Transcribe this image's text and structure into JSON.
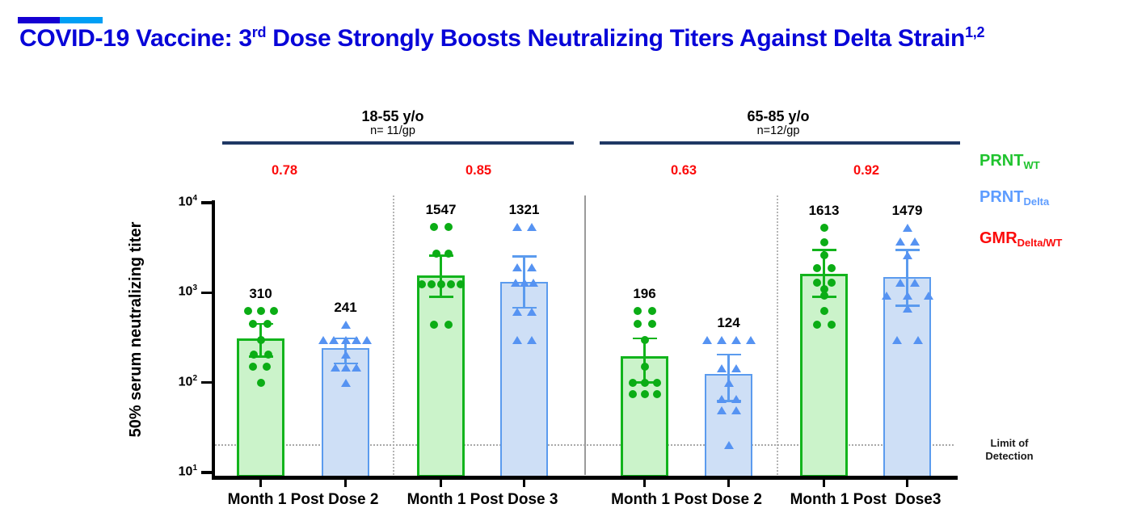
{
  "slide_title": {
    "part1": "COVID-19 Vaccine: 3",
    "sup1": "rd",
    "part2": " Dose Strongly Boosts Neutralizing Titers Against Delta Strain",
    "sup2": "1,2",
    "color": "#0805D8"
  },
  "accent": {
    "dark_bar_color": "#1500D2",
    "light_bar_color": "#009FF5"
  },
  "legend": {
    "items": [
      {
        "main": "PRNT",
        "sub": "WT",
        "color": "#1FC32E"
      },
      {
        "main": "PRNT",
        "sub": "Delta",
        "color": "#5D9CFF"
      },
      {
        "main": "GMR",
        "sub": "Delta/WT",
        "color": "#FB0A0A"
      }
    ]
  },
  "chart_data": {
    "type": "bar",
    "yscale": "log",
    "ylabel": "50% serum neutralizing titer",
    "ylim": [
      10,
      10000
    ],
    "ytick_exponents": [
      1,
      2,
      3,
      4
    ],
    "grid": false,
    "limit_of_detection": {
      "value": 20,
      "label_line1": "Limit of",
      "label_line2": "Detection"
    },
    "colors": {
      "wt_fill": "#CBF3CA",
      "wt_stroke": "#12B41C",
      "wt_point": "#0BAD15",
      "delta_fill": "#CEDFF6",
      "delta_stroke": "#5B9BEE",
      "delta_point": "#5693F2",
      "gmr_text": "#FB0A0A",
      "header_line": "#1F3864",
      "axis": "#000000",
      "separator_solid": "#9B9B9B",
      "separator_dotted": "#B5B5B5",
      "lod_line": "#A8A8A8"
    },
    "age_groups": [
      {
        "label": "18-55 y/o",
        "n_label": "n= 11/gp"
      },
      {
        "label": "65-85 y/o",
        "n_label": "n=12/gp"
      }
    ],
    "dose_groups": [
      {
        "age_group": 0,
        "label": "Month 1 Post Dose 2",
        "gmr": "0.78"
      },
      {
        "age_group": 0,
        "label": "Month 1 Post Dose 3",
        "gmr": "0.85"
      },
      {
        "age_group": 1,
        "label": "Month 1 Post Dose 2",
        "gmr": "0.63"
      },
      {
        "age_group": 1,
        "label": "Month 1 Post  Dose3",
        "gmr": "0.92"
      }
    ],
    "bars": [
      {
        "dose_group": 0,
        "series": "PRNT_WT",
        "value": 310,
        "err_lo": 195,
        "err_hi": 450,
        "points": [
          [
            630,
            -16
          ],
          [
            630,
            0
          ],
          [
            630,
            16
          ],
          [
            450,
            -10
          ],
          [
            450,
            8
          ],
          [
            295,
            0
          ],
          [
            205,
            -9
          ],
          [
            205,
            9
          ],
          [
            150,
            -10
          ],
          [
            150,
            7
          ],
          [
            100,
            0
          ]
        ]
      },
      {
        "dose_group": 0,
        "series": "PRNT_Delta",
        "value": 241,
        "err_lo": 163,
        "err_hi": 310,
        "points": [
          [
            440,
            0
          ],
          [
            300,
            -28
          ],
          [
            300,
            -15
          ],
          [
            300,
            0
          ],
          [
            300,
            13
          ],
          [
            300,
            26
          ],
          [
            205,
            0
          ],
          [
            148,
            -13
          ],
          [
            148,
            0
          ],
          [
            148,
            13
          ],
          [
            100,
            0
          ]
        ]
      },
      {
        "dose_group": 1,
        "series": "PRNT_WT",
        "value": 1547,
        "err_lo": 900,
        "err_hi": 2600,
        "points": [
          [
            5400,
            -9
          ],
          [
            5400,
            9
          ],
          [
            2700,
            -6
          ],
          [
            2700,
            9
          ],
          [
            1250,
            -24
          ],
          [
            1250,
            -12
          ],
          [
            1250,
            0
          ],
          [
            1250,
            12
          ],
          [
            1250,
            24
          ],
          [
            440,
            -9
          ],
          [
            440,
            9
          ]
        ]
      },
      {
        "dose_group": 1,
        "series": "PRNT_Delta",
        "value": 1321,
        "err_lo": 680,
        "err_hi": 2550,
        "points": [
          [
            5400,
            -9
          ],
          [
            5400,
            9
          ],
          [
            1900,
            -9
          ],
          [
            1900,
            9
          ],
          [
            1300,
            -11
          ],
          [
            1300,
            11
          ],
          [
            1300,
            0
          ],
          [
            620,
            -9
          ],
          [
            620,
            9
          ],
          [
            300,
            -9
          ],
          [
            300,
            9
          ]
        ]
      },
      {
        "dose_group": 2,
        "series": "PRNT_WT",
        "value": 196,
        "err_lo": 100,
        "err_hi": 310,
        "points": [
          [
            630,
            -9
          ],
          [
            630,
            9
          ],
          [
            450,
            -9
          ],
          [
            450,
            9
          ],
          [
            295,
            0
          ],
          [
            150,
            0
          ],
          [
            100,
            -15
          ],
          [
            100,
            0
          ],
          [
            100,
            15
          ],
          [
            74,
            -15
          ],
          [
            74,
            0
          ],
          [
            74,
            15
          ]
        ]
      },
      {
        "dose_group": 2,
        "series": "PRNT_Delta",
        "value": 124,
        "err_lo": 62,
        "err_hi": 205,
        "points": [
          [
            300,
            -27
          ],
          [
            300,
            -9
          ],
          [
            300,
            9
          ],
          [
            300,
            27
          ],
          [
            145,
            -9
          ],
          [
            145,
            9
          ],
          [
            100,
            0
          ],
          [
            66,
            -9
          ],
          [
            66,
            9
          ],
          [
            49,
            -9
          ],
          [
            49,
            9
          ],
          [
            20,
            0
          ]
        ]
      },
      {
        "dose_group": 3,
        "series": "PRNT_WT",
        "value": 1613,
        "err_lo": 900,
        "err_hi": 3000,
        "points": [
          [
            5300,
            0
          ],
          [
            3600,
            0
          ],
          [
            2600,
            0
          ],
          [
            1870,
            -9
          ],
          [
            1870,
            9
          ],
          [
            1300,
            -9
          ],
          [
            1300,
            9
          ],
          [
            1100,
            0
          ],
          [
            930,
            0
          ],
          [
            630,
            0
          ],
          [
            440,
            -9
          ],
          [
            440,
            9
          ]
        ]
      },
      {
        "dose_group": 3,
        "series": "PRNT_Delta",
        "value": 1479,
        "err_lo": 720,
        "err_hi": 3000,
        "points": [
          [
            5300,
            0
          ],
          [
            3700,
            -9
          ],
          [
            3700,
            9
          ],
          [
            2600,
            0
          ],
          [
            1300,
            -9
          ],
          [
            1300,
            9
          ],
          [
            930,
            -26
          ],
          [
            930,
            0
          ],
          [
            930,
            26
          ],
          [
            660,
            0
          ],
          [
            295,
            -13
          ],
          [
            295,
            13
          ]
        ]
      }
    ]
  }
}
